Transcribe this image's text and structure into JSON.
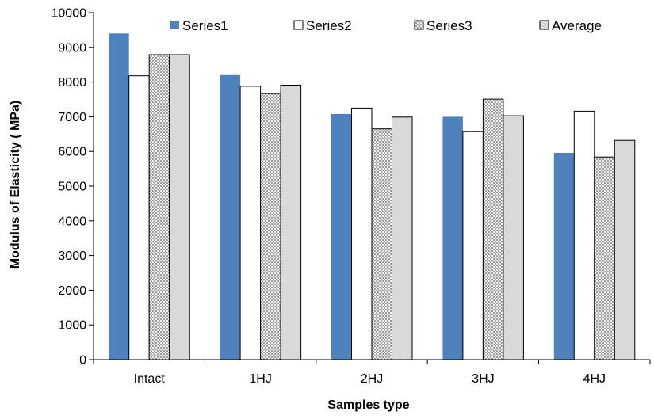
{
  "chart_data": {
    "type": "bar",
    "title": "",
    "xlabel": "Samples type",
    "ylabel": "Modulus of Elasticity  ( MPa)",
    "ylim": [
      0,
      10000
    ],
    "ytick_step": 1000,
    "categories": [
      "Intact",
      "1HJ",
      "2HJ",
      "3HJ",
      "4HJ"
    ],
    "legend_position": "top",
    "grid": false,
    "series": [
      {
        "name": "Series1",
        "color": "#4f81bd",
        "pattern": "solid",
        "values": [
          9400,
          8200,
          7080,
          7000,
          5960
        ]
      },
      {
        "name": "Series2",
        "color": "#ffffff",
        "pattern": "plain",
        "values": [
          8180,
          7880,
          7250,
          6570,
          7160
        ]
      },
      {
        "name": "Series3",
        "color": "#e6e6e6",
        "pattern": "checker",
        "values": [
          8790,
          7670,
          6650,
          7510,
          5840
        ]
      },
      {
        "name": "Average",
        "color": "#d9d9d9",
        "pattern": "plain",
        "values": [
          8790,
          7910,
          6990,
          7030,
          6320
        ]
      }
    ]
  }
}
